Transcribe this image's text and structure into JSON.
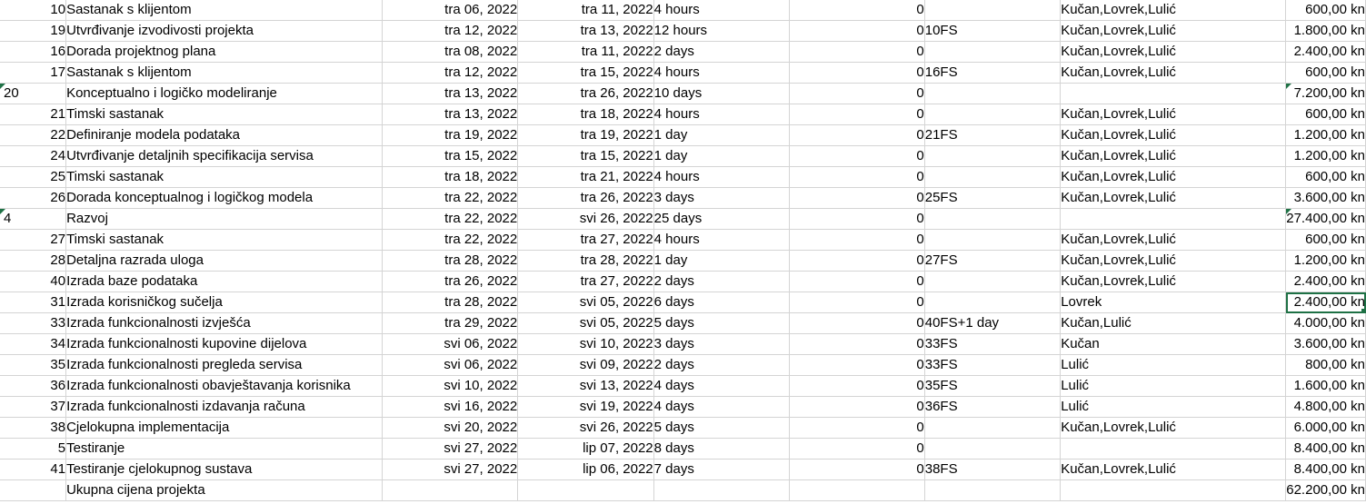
{
  "rows": [
    {
      "id": "10",
      "name": "Sastanak s klijentom",
      "start": "tra 06, 2022",
      "end": "tra 11, 2022",
      "duration": "4 hours",
      "num": "0",
      "pred": "",
      "res": "Kučan,Lovrek,Lulić",
      "cost": "600,00 kn"
    },
    {
      "id": "19",
      "name": "Utvrđivanje izvodivosti projekta",
      "start": "tra 12, 2022",
      "end": "tra 13, 2022",
      "duration": "12 hours",
      "num": "0",
      "pred": "10FS",
      "res": "Kučan,Lovrek,Lulić",
      "cost": "1.800,00 kn"
    },
    {
      "id": "16",
      "name": "Dorada projektnog plana",
      "start": "tra 08, 2022",
      "end": "tra 11, 2022",
      "duration": "2 days",
      "num": "0",
      "pred": "",
      "res": "Kučan,Lovrek,Lulić",
      "cost": "2.400,00 kn"
    },
    {
      "id": "17",
      "name": "Sastanak s klijentom",
      "start": "tra 12, 2022",
      "end": "tra 15, 2022",
      "duration": "4 hours",
      "num": "0",
      "pred": "16FS",
      "res": "Kučan,Lovrek,Lulić",
      "cost": "600,00 kn"
    },
    {
      "id": "20",
      "name": "Konceptualno i logičko modeliranje",
      "start": "tra 13, 2022",
      "end": "tra 26, 2022",
      "duration": "10 days",
      "num": "0",
      "pred": "",
      "res": "",
      "cost": "7.200,00 kn",
      "group": true,
      "idLeft": true,
      "tri": true
    },
    {
      "id": "21",
      "name": "Timski sastanak",
      "start": "tra 13, 2022",
      "end": "tra 18, 2022",
      "duration": "4 hours",
      "num": "0",
      "pred": "",
      "res": "Kučan,Lovrek,Lulić",
      "cost": "600,00 kn"
    },
    {
      "id": "22",
      "name": "Definiranje modela podataka",
      "start": "tra 19, 2022",
      "end": "tra 19, 2022",
      "duration": "1 day",
      "num": "0",
      "pred": "21FS",
      "res": "Kučan,Lovrek,Lulić",
      "cost": "1.200,00 kn"
    },
    {
      "id": "24",
      "name": "Utvrđivanje detaljnih specifikacija servisa",
      "start": "tra 15, 2022",
      "end": "tra 15, 2022",
      "duration": "1 day",
      "num": "0",
      "pred": "",
      "res": "Kučan,Lovrek,Lulić",
      "cost": "1.200,00 kn"
    },
    {
      "id": "25",
      "name": "Timski sastanak",
      "start": "tra 18, 2022",
      "end": "tra 21, 2022",
      "duration": "4 hours",
      "num": "0",
      "pred": "",
      "res": "Kučan,Lovrek,Lulić",
      "cost": "600,00 kn"
    },
    {
      "id": "26",
      "name": "Dorada konceptualnog i logičkog modela",
      "start": "tra 22, 2022",
      "end": "tra 26, 2022",
      "duration": "3 days",
      "num": "0",
      "pred": "25FS",
      "res": "Kučan,Lovrek,Lulić",
      "cost": "3.600,00 kn"
    },
    {
      "id": "4",
      "name": "Razvoj",
      "start": "tra 22, 2022",
      "end": "svi 26, 2022",
      "duration": "25 days",
      "num": "0",
      "pred": "",
      "res": "",
      "cost": "27.400,00 kn",
      "group": true,
      "idLeft": true,
      "tri": true
    },
    {
      "id": "27",
      "name": "Timski sastanak",
      "start": "tra 22, 2022",
      "end": "tra 27, 2022",
      "duration": "4 hours",
      "num": "0",
      "pred": "",
      "res": "Kučan,Lovrek,Lulić",
      "cost": "600,00 kn"
    },
    {
      "id": "28",
      "name": "Detaljna razrada uloga",
      "start": "tra 28, 2022",
      "end": "tra 28, 2022",
      "duration": "1 day",
      "num": "0",
      "pred": "27FS",
      "res": "Kučan,Lovrek,Lulić",
      "cost": "1.200,00 kn"
    },
    {
      "id": "40",
      "name": "Izrada baze podataka",
      "start": "tra 26, 2022",
      "end": "tra 27, 2022",
      "duration": "2 days",
      "num": "0",
      "pred": "",
      "res": "Kučan,Lovrek,Lulić",
      "cost": "2.400,00 kn"
    },
    {
      "id": "31",
      "name": "Izrada korisničkog sučelja",
      "start": "tra 28, 2022",
      "end": "svi 05, 2022",
      "duration": "6 days",
      "num": "0",
      "pred": "",
      "res": "Lovrek",
      "cost": "2.400,00 kn",
      "selected": true
    },
    {
      "id": "33",
      "name": "Izrada funkcionalnosti izvješća",
      "start": "tra 29, 2022",
      "end": "svi 05, 2022",
      "duration": "5 days",
      "num": "0",
      "pred": "40FS+1 day",
      "res": "Kučan,Lulić",
      "cost": "4.000,00 kn"
    },
    {
      "id": "34",
      "name": "Izrada funkcionalnosti kupovine dijelova",
      "start": "svi 06, 2022",
      "end": "svi 10, 2022",
      "duration": "3 days",
      "num": "0",
      "pred": "33FS",
      "res": "Kučan",
      "cost": "3.600,00 kn"
    },
    {
      "id": "35",
      "name": "Izrada funkcionalnosti pregleda servisa",
      "start": "svi 06, 2022",
      "end": "svi 09, 2022",
      "duration": "2 days",
      "num": "0",
      "pred": "33FS",
      "res": "Lulić",
      "cost": "800,00 kn"
    },
    {
      "id": "36",
      "name": "Izrada funkcionalnosti obavještavanja korisnika",
      "start": "svi 10, 2022",
      "end": "svi 13, 2022",
      "duration": "4 days",
      "num": "0",
      "pred": "35FS",
      "res": "Lulić",
      "cost": "1.600,00 kn"
    },
    {
      "id": "37",
      "name": "Izrada funkcionalnosti izdavanja računa",
      "start": "svi 16, 2022",
      "end": "svi 19, 2022",
      "duration": "4 days",
      "num": "0",
      "pred": "36FS",
      "res": "Lulić",
      "cost": "4.800,00 kn"
    },
    {
      "id": "38",
      "name": "Cjelokupna implementacija",
      "start": "svi 20, 2022",
      "end": "svi 26, 2022",
      "duration": "5 days",
      "num": "0",
      "pred": "",
      "res": "Kučan,Lovrek,Lulić",
      "cost": "6.000,00 kn"
    },
    {
      "id": "5",
      "name": "Testiranje",
      "start": "svi 27, 2022",
      "end": "lip 07, 2022",
      "duration": "8 days",
      "num": "0",
      "pred": "",
      "res": "",
      "cost": "8.400,00 kn",
      "group": true
    },
    {
      "id": "41",
      "name": "Testiranje cjelokupnog sustava",
      "start": "svi 27, 2022",
      "end": "lip 06, 2022",
      "duration": "7 days",
      "num": "0",
      "pred": "38FS",
      "res": "Kučan,Lovrek,Lulić",
      "cost": "8.400,00 kn"
    },
    {
      "id": "",
      "name": "Ukupna cijena projekta",
      "start": "",
      "end": "",
      "duration": "",
      "num": "",
      "pred": "",
      "res": "",
      "cost": "62.200,00 kn"
    }
  ]
}
